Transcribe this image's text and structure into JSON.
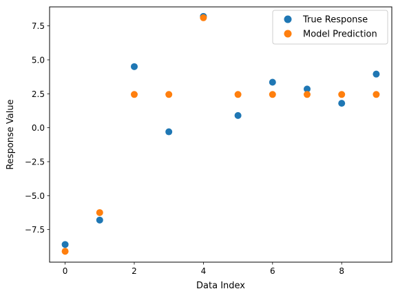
{
  "chart_data": {
    "type": "scatter",
    "title": "",
    "xlabel": "Data Index",
    "ylabel": "Response Value",
    "xlim": [
      -0.45,
      9.45
    ],
    "ylim": [
      -9.9,
      8.9
    ],
    "x_ticks": [
      0,
      2,
      4,
      6,
      8
    ],
    "x_tick_labels": [
      "0",
      "2",
      "4",
      "6",
      "8"
    ],
    "y_ticks": [
      -7.5,
      -5.0,
      -2.5,
      0.0,
      2.5,
      5.0,
      7.5
    ],
    "y_tick_labels": [
      "−7.5",
      "−5.0",
      "−2.5",
      "0.0",
      "2.5",
      "5.0",
      "7.5"
    ],
    "grid": false,
    "legend_position": "top-right",
    "x": [
      0,
      1,
      2,
      3,
      4,
      5,
      6,
      7,
      8,
      9
    ],
    "series": [
      {
        "name": "True Response",
        "color": "#1f77b4",
        "values": [
          -8.6,
          -6.8,
          4.5,
          -0.3,
          8.2,
          0.9,
          3.35,
          2.85,
          1.8,
          3.95
        ]
      },
      {
        "name": "Model Prediction",
        "color": "#ff7f0e",
        "values": [
          -9.1,
          -6.25,
          2.45,
          2.45,
          8.1,
          2.45,
          2.45,
          2.45,
          2.45,
          2.45
        ]
      }
    ]
  }
}
